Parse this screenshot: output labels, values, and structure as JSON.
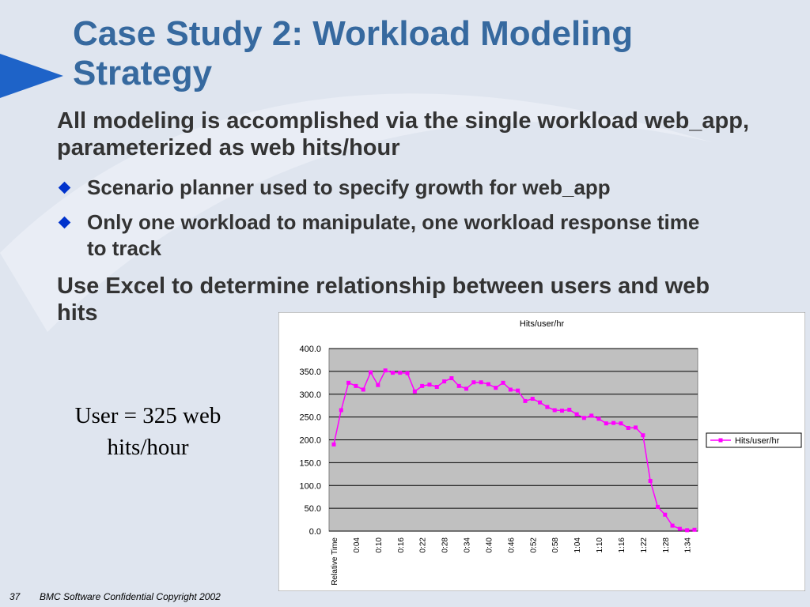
{
  "slide": {
    "title": "Case Study 2: Workload Modeling Strategy",
    "points": [
      {
        "level": 1,
        "text": "All modeling is accomplished via the single workload web_app, parameterized as web hits/hour"
      },
      {
        "level": 2,
        "text": "Scenario planner used to specify growth for web_app"
      },
      {
        "level": 2,
        "text": "Only one workload to manipulate, one workload response time to track"
      },
      {
        "level": 1,
        "text": "Use Excel to determine relationship between users and web hits"
      }
    ],
    "note": "User = 325 web hits/hour",
    "footer": {
      "page": "37",
      "text": "BMC Software Confidential  Copyright 2002"
    }
  },
  "chart_data": {
    "type": "line",
    "title": "Hits/user/hr",
    "categories": [
      "Relative Time",
      null,
      null,
      "0:04",
      null,
      null,
      "0:10",
      null,
      null,
      "0:16",
      null,
      null,
      "0:22",
      null,
      null,
      "0:28",
      null,
      null,
      "0:34",
      null,
      null,
      "0:40",
      null,
      null,
      "0:46",
      null,
      null,
      "0:52",
      null,
      null,
      "0:58",
      null,
      null,
      "1:04",
      null,
      null,
      "1:10",
      null,
      null,
      "1:16",
      null,
      null,
      "1:22",
      null,
      null,
      "1:28",
      null,
      null,
      "1:34",
      null
    ],
    "series": [
      {
        "name": "Hits/user/hr",
        "color": "#ff00ff",
        "values": [
          190,
          265,
          325,
          318,
          310,
          348,
          320,
          352,
          347,
          347,
          346,
          306,
          318,
          321,
          316,
          328,
          335,
          318,
          312,
          326,
          326,
          322,
          314,
          325,
          310,
          308,
          285,
          290,
          282,
          272,
          265,
          264,
          266,
          256,
          248,
          253,
          246,
          236,
          237,
          236,
          226,
          227,
          210,
          110,
          53,
          36,
          12,
          5,
          2,
          3
        ]
      }
    ],
    "ylim": [
      0,
      400
    ],
    "yticks": [
      {
        "value": 0,
        "label": "0.0"
      },
      {
        "value": 50,
        "label": "50.0"
      },
      {
        "value": 100,
        "label": "100.0"
      },
      {
        "value": 150,
        "label": "150.0"
      },
      {
        "value": 200,
        "label": "200.0"
      },
      {
        "value": 250,
        "label": "250.0"
      },
      {
        "value": 300,
        "label": "300.0"
      },
      {
        "value": 350,
        "label": "350.0"
      },
      {
        "value": 400,
        "label": "400.0"
      }
    ],
    "grid": true,
    "legend": "right",
    "plot_background": "#c0c0c0"
  }
}
